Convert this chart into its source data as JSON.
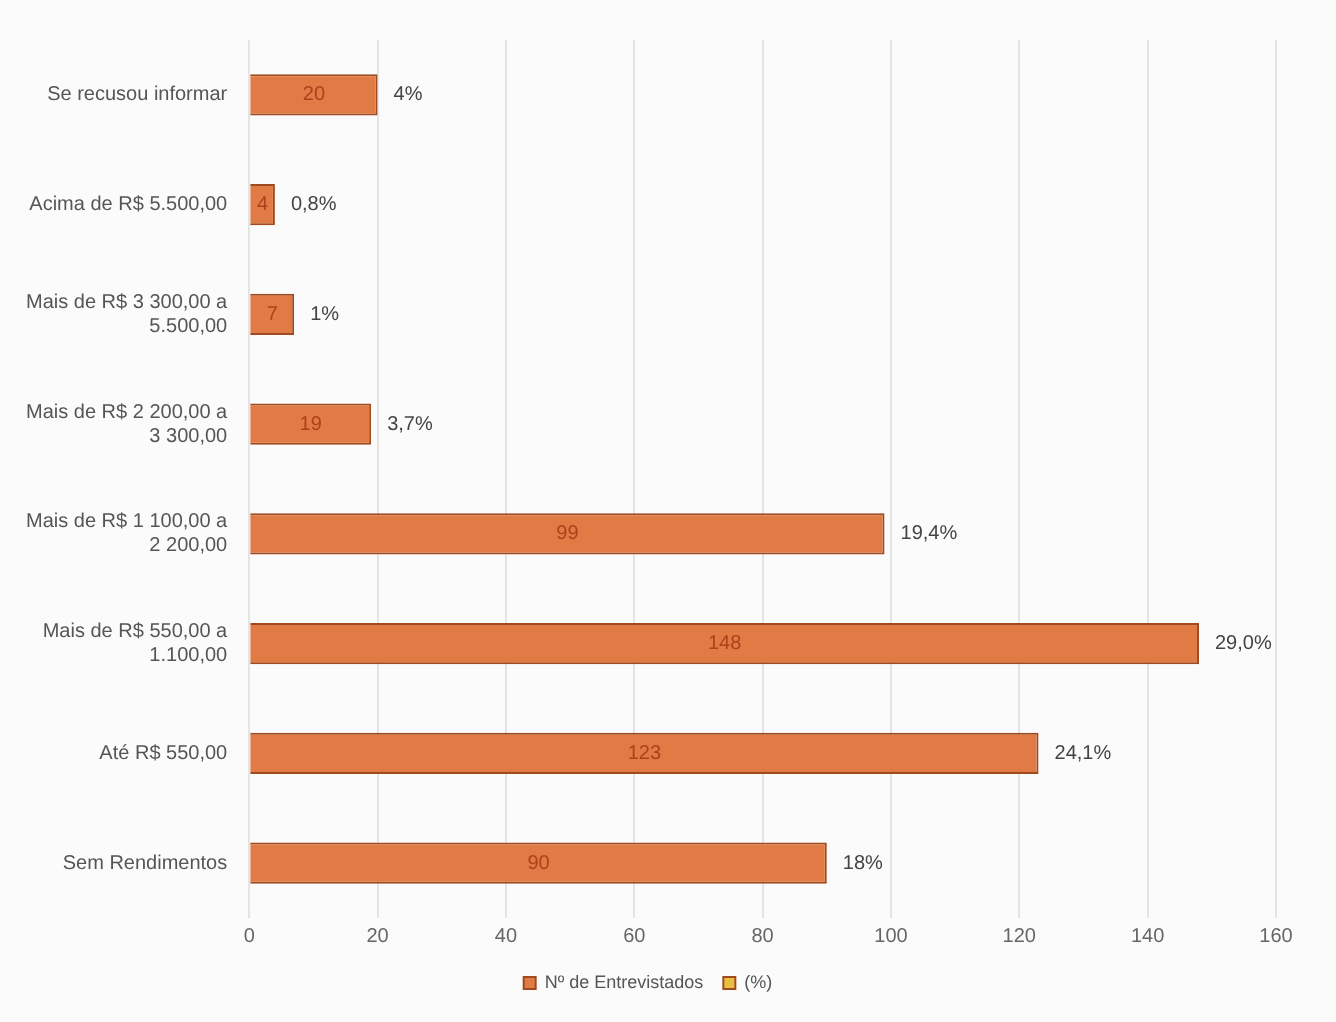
{
  "chart_data": {
    "type": "bar",
    "orientation": "horizontal",
    "categories": [
      "Se recusou informar",
      "Acima de R$ 5.500,00",
      "Mais de R$ 3 300,00 a 5.500,00",
      "Mais de R$ 2 200,00 a 3 300,00",
      "Mais de R$ 1 100,00 a 2 200,00",
      "Mais de R$ 550,00 a 1.100,00",
      "Até R$ 550,00",
      "Sem Rendimentos"
    ],
    "series": [
      {
        "name": "Nº de Entrevistados",
        "color": "#e07b45",
        "values": [
          20,
          4,
          7,
          19,
          99,
          148,
          123,
          90
        ]
      },
      {
        "name": "(%)",
        "color": "#e8c040",
        "values": [
          null,
          null,
          null,
          null,
          null,
          null,
          null,
          null
        ]
      }
    ],
    "xlim": [
      0,
      160
    ],
    "xticks": [
      0,
      20,
      40,
      60,
      80,
      100,
      120,
      140,
      160
    ],
    "grid": "x",
    "legend": "bottom",
    "data_labels": true,
    "annotations": [
      {
        "text": "4%",
        "x": 20,
        "y": "Se recusou informar"
      },
      {
        "text": "0,8%",
        "x": 4,
        "y": "Acima de R$ 5.500,00"
      },
      {
        "text": "1%",
        "x": 7,
        "y": "Mais de R$ 3 300,00 a 5.500,00"
      },
      {
        "text": "3,7%",
        "x": 19,
        "y": "Mais de R$ 2 200,00 a 3 300,00"
      },
      {
        "text": "19,4%",
        "x": 99,
        "y": "Mais de R$ 1 100,00 a 2 200,00"
      },
      {
        "text": "29,0%",
        "x": 148,
        "y": "Mais de R$ 550,00 a 1.100,00"
      },
      {
        "text": "24,1%",
        "x": 123,
        "y": "Até R$ 550,00"
      },
      {
        "text": "18%",
        "x": 90,
        "y": "Sem Rendimentos"
      }
    ]
  }
}
